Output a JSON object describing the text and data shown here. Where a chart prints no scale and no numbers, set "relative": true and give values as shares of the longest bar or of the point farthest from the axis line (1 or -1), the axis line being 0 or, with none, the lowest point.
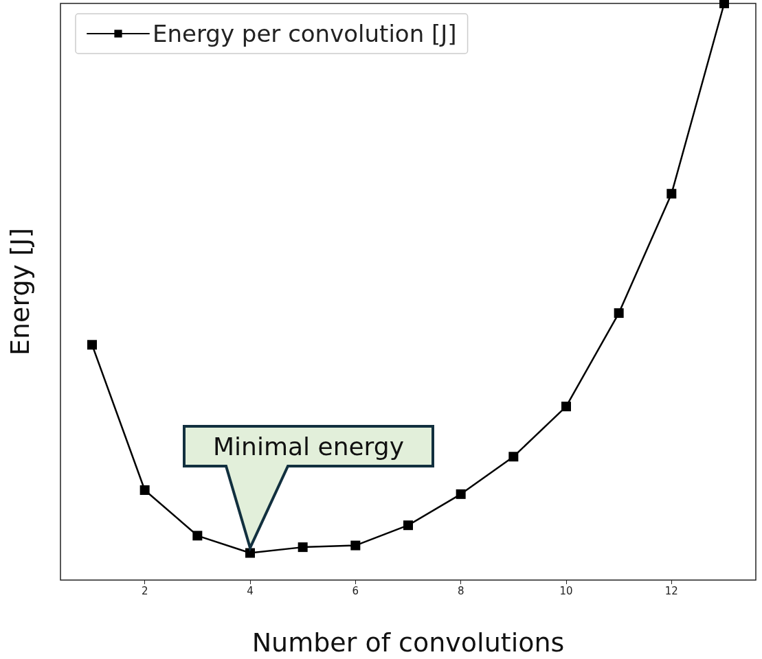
{
  "chart_data": {
    "type": "line",
    "xlabel": "Number of convolutions",
    "ylabel": "Energy [J]",
    "relative": true,
    "x": [
      1,
      2,
      3,
      4,
      5,
      6,
      7,
      8,
      9,
      10,
      11,
      12,
      13
    ],
    "series": [
      {
        "name": "Energy per convolution [J]",
        "color": "#000000",
        "values": [
          0.408,
          0.156,
          0.077,
          0.047,
          0.057,
          0.06,
          0.095,
          0.149,
          0.214,
          0.301,
          0.463,
          0.67,
          1.0
        ]
      }
    ],
    "xlim": [
      0.4,
      13.6
    ],
    "xticks": [
      2,
      4,
      6,
      8,
      10,
      12
    ],
    "annotations": [
      "Minimal energy"
    ],
    "legend": "top left",
    "marker": "square",
    "line_style": "solid"
  }
}
